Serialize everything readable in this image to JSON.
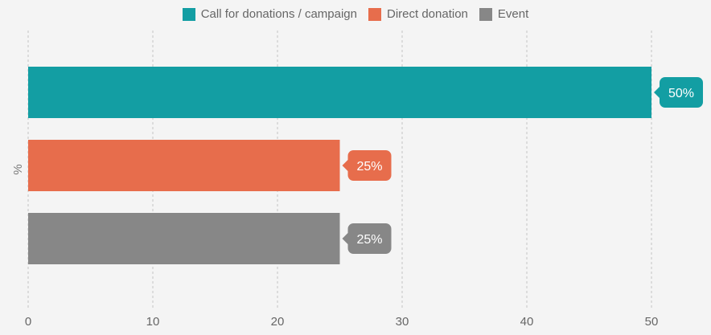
{
  "chart_data": {
    "type": "bar",
    "orientation": "horizontal",
    "categories": [
      "Call for donations / campaign",
      "Direct donation",
      "Event"
    ],
    "values": [
      50,
      25,
      25
    ],
    "value_labels": [
      "50%",
      "25%",
      "25%"
    ],
    "colors": [
      "#139ea3",
      "#e76d4c",
      "#878787"
    ],
    "ylabel": "%",
    "xlim": [
      0,
      53
    ],
    "x_ticks": [
      0,
      10,
      20,
      30,
      40,
      50
    ],
    "grid": "vertical dashed",
    "legend_position": "top-center"
  }
}
